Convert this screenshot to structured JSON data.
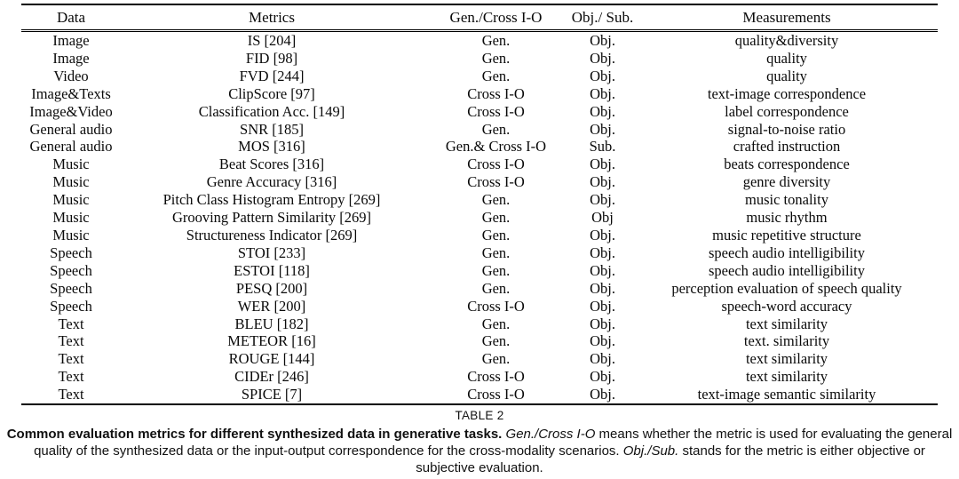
{
  "table": {
    "headers": [
      "Data",
      "Metrics",
      "Gen./Cross I-O",
      "Obj./ Sub.",
      "Measurements"
    ],
    "rows": [
      {
        "data": "Image",
        "metric": "IS [204]",
        "gen_cross": "Gen.",
        "obj_sub": "Obj.",
        "measurement": "quality&diversity"
      },
      {
        "data": "Image",
        "metric": "FID [98]",
        "gen_cross": "Gen.",
        "obj_sub": "Obj.",
        "measurement": "quality"
      },
      {
        "data": "Video",
        "metric": "FVD [244]",
        "gen_cross": "Gen.",
        "obj_sub": "Obj.",
        "measurement": "quality"
      },
      {
        "data": "Image&Texts",
        "metric": "ClipScore [97]",
        "gen_cross": "Cross I-O",
        "obj_sub": "Obj.",
        "measurement": "text-image correspondence"
      },
      {
        "data": "Image&Video",
        "metric": "Classification Acc. [149]",
        "gen_cross": "Cross I-O",
        "obj_sub": "Obj.",
        "measurement": "label correspondence"
      },
      {
        "data": "General audio",
        "metric": "SNR [185]",
        "gen_cross": "Gen.",
        "obj_sub": "Obj.",
        "measurement": "signal-to-noise ratio"
      },
      {
        "data": "General audio",
        "metric": "MOS [316]",
        "gen_cross": "Gen.& Cross I-O",
        "obj_sub": "Sub.",
        "measurement": "crafted instruction"
      },
      {
        "data": "Music",
        "metric": "Beat Scores [316]",
        "gen_cross": "Cross I-O",
        "obj_sub": "Obj.",
        "measurement": "beats correspondence"
      },
      {
        "data": "Music",
        "metric": "Genre Accuracy [316]",
        "gen_cross": "Cross I-O",
        "obj_sub": "Obj.",
        "measurement": "genre diversity"
      },
      {
        "data": "Music",
        "metric": "Pitch Class Histogram Entropy [269]",
        "gen_cross": "Gen.",
        "obj_sub": "Obj.",
        "measurement": "music tonality"
      },
      {
        "data": "Music",
        "metric": "Grooving Pattern Similarity [269]",
        "gen_cross": "Gen.",
        "obj_sub": "Obj",
        "measurement": "music rhythm"
      },
      {
        "data": "Music",
        "metric": "Structureness Indicator [269]",
        "gen_cross": "Gen.",
        "obj_sub": "Obj.",
        "measurement": "music repetitive structure"
      },
      {
        "data": "Speech",
        "metric": "STOI [233]",
        "gen_cross": "Gen.",
        "obj_sub": "Obj.",
        "measurement": "speech audio intelligibility"
      },
      {
        "data": "Speech",
        "metric": "ESTOI [118]",
        "gen_cross": "Gen.",
        "obj_sub": "Obj.",
        "measurement": "speech audio intelligibility"
      },
      {
        "data": "Speech",
        "metric": "PESQ [200]",
        "gen_cross": "Gen.",
        "obj_sub": "Obj.",
        "measurement": "perception evaluation of speech quality"
      },
      {
        "data": "Speech",
        "metric": "WER [200]",
        "gen_cross": "Cross I-O",
        "obj_sub": "Obj.",
        "measurement": "speech-word accuracy"
      },
      {
        "data": "Text",
        "metric": "BLEU [182]",
        "gen_cross": "Gen.",
        "obj_sub": "Obj.",
        "measurement": "text similarity"
      },
      {
        "data": "Text",
        "metric": "METEOR [16]",
        "gen_cross": "Gen.",
        "obj_sub": "Obj.",
        "measurement": "text. similarity"
      },
      {
        "data": "Text",
        "metric": "ROUGE [144]",
        "gen_cross": "Gen.",
        "obj_sub": "Obj.",
        "measurement": "text similarity"
      },
      {
        "data": "Text",
        "metric": "CIDEr [246]",
        "gen_cross": "Cross I-O",
        "obj_sub": "Obj.",
        "measurement": "text similarity"
      },
      {
        "data": "Text",
        "metric": "SPICE [7]",
        "gen_cross": "Cross I-O",
        "obj_sub": "Obj.",
        "measurement": "text-image semantic similarity"
      }
    ]
  },
  "caption": {
    "table_label": "TABLE 2",
    "bold_lead": "Common evaluation metrics for different synthesized data in generative tasks. ",
    "italic_gen_cross": "Gen./Cross I-O",
    "text_1": " means whether the metric is used for evaluating the general quality of the synthesized data or the input-output correspondence for the cross-modality scenarios. ",
    "italic_obj_sub": "Obj./Sub.",
    "text_2": " stands for the metric is either objective or subjective evaluation."
  }
}
